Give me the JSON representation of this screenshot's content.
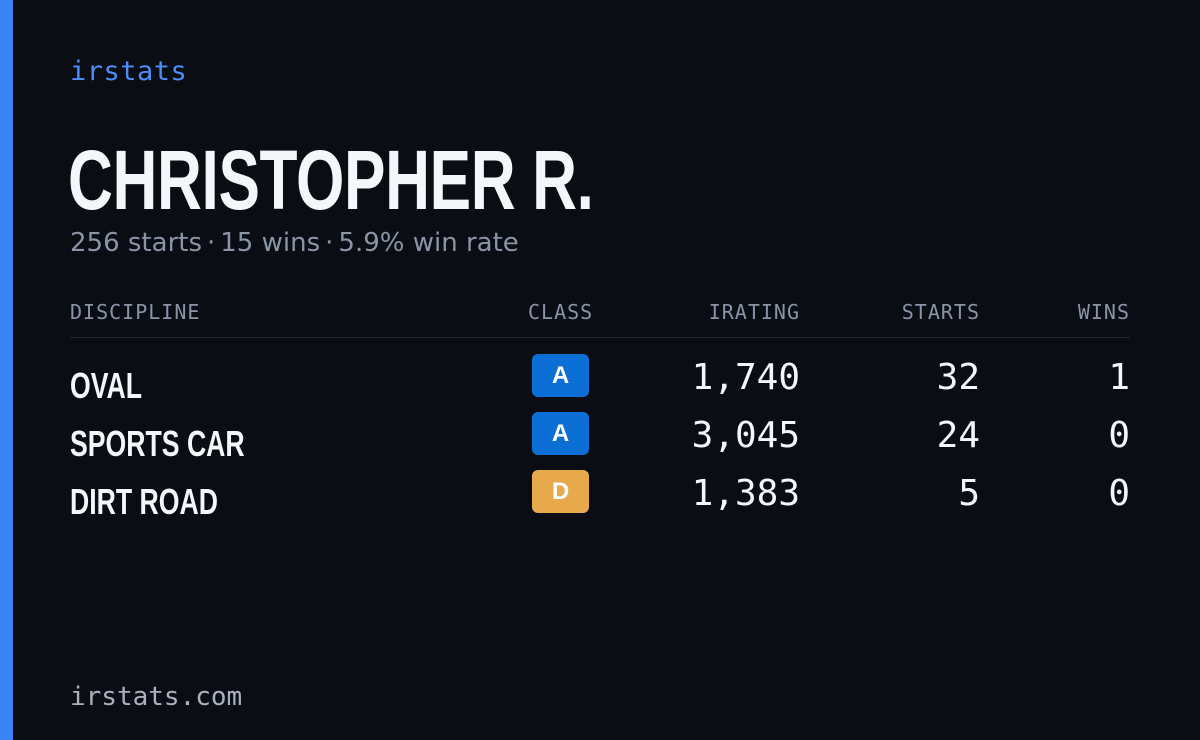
{
  "brand": "irstats",
  "accent_color": "#3b82f6",
  "driver": {
    "name": "CHRISTOPHER R.",
    "starts": "256 starts",
    "wins": "15 wins",
    "win_rate": "5.9% win rate",
    "separator": "·"
  },
  "table": {
    "headers": {
      "discipline": "DISCIPLINE",
      "class": "CLASS",
      "irating": "IRATING",
      "starts": "STARTS",
      "wins": "WINS"
    },
    "rows": [
      {
        "discipline": "OVAL",
        "class": "A",
        "class_color": "#0c6fd6",
        "irating": "1,740",
        "starts": "32",
        "wins": "1"
      },
      {
        "discipline": "SPORTS CAR",
        "class": "A",
        "class_color": "#0c6fd6",
        "irating": "3,045",
        "starts": "24",
        "wins": "0"
      },
      {
        "discipline": "DIRT ROAD",
        "class": "D",
        "class_color": "#e8a94c",
        "irating": "1,383",
        "starts": "5",
        "wins": "0"
      }
    ]
  },
  "footer": {
    "url": "irstats.com"
  }
}
